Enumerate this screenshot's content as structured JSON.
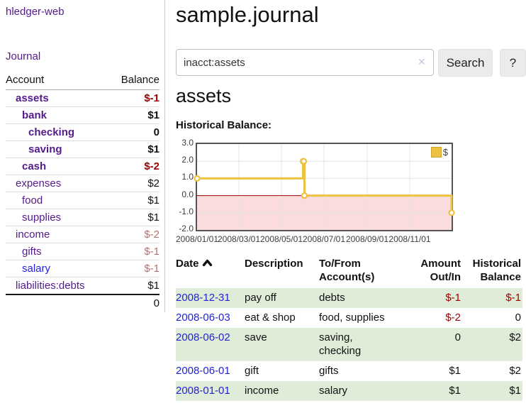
{
  "colors": {
    "link_purple": "#551a8b",
    "link_blue": "#2323d6",
    "negative_strong": "#9b0000",
    "negative_muted": "#b96f6f",
    "row_shade_green": "#dfecd8",
    "chart_line_gold": "#edc240",
    "chart_negative_fill": "#fadcdc",
    "chart_zero_line": "#a40000"
  },
  "sidebar": {
    "brand": "hledger-web",
    "journal_link": "Journal",
    "accounts_table": {
      "headers": [
        "Account",
        "Balance"
      ],
      "rows": [
        {
          "name": "assets",
          "balance": "$-1",
          "depth": 1,
          "bold": true,
          "tone": "neg"
        },
        {
          "name": "bank",
          "balance": "$1",
          "depth": 2,
          "bold": true,
          "tone": "pos"
        },
        {
          "name": "checking",
          "balance": "0",
          "depth": 3,
          "bold": true,
          "tone": "pos"
        },
        {
          "name": "saving",
          "balance": "$1",
          "depth": 3,
          "bold": true,
          "tone": "pos"
        },
        {
          "name": "cash",
          "balance": "$-2",
          "depth": 2,
          "bold": true,
          "tone": "neg"
        },
        {
          "name": "expenses",
          "balance": "$2",
          "depth": 1,
          "bold": false,
          "tone": "pos"
        },
        {
          "name": "food",
          "balance": "$1",
          "depth": 2,
          "bold": false,
          "tone": "pos"
        },
        {
          "name": "supplies",
          "balance": "$1",
          "depth": 2,
          "bold": false,
          "tone": "pos"
        },
        {
          "name": "income",
          "balance": "$-2",
          "depth": 1,
          "bold": false,
          "tone": "neg-muted"
        },
        {
          "name": "gifts",
          "balance": "$-1",
          "depth": 2,
          "bold": false,
          "tone": "neg-muted"
        },
        {
          "name": "salary",
          "balance": "$-1",
          "depth": 2,
          "bold": false,
          "tone": "neg-muted",
          "link_color": "blue"
        },
        {
          "name": "liabilities:debts",
          "balance": "$1",
          "depth": 1,
          "bold": false,
          "tone": "pos"
        }
      ],
      "total": "0"
    }
  },
  "main": {
    "title": "sample.journal",
    "search": {
      "value": "inacct:assets",
      "clear_icon": "✕",
      "search_button": "Search",
      "help_button": "?"
    },
    "account_heading": "assets",
    "chart_label": "Historical Balance:",
    "register_table": {
      "headers": [
        {
          "label": "Date",
          "sorted": "asc",
          "align": "left"
        },
        {
          "label": "Description",
          "align": "left"
        },
        {
          "label": "To/From\nAccount(s)",
          "align": "left"
        },
        {
          "label": "Amount\nOut/In",
          "align": "right"
        },
        {
          "label": "Historical\nBalance",
          "align": "right"
        }
      ],
      "rows": [
        {
          "date": "2008-12-31",
          "description": "pay off",
          "account_lines": [
            "debts"
          ],
          "amount": "$-1",
          "amount_neg": true,
          "balance": "$-1",
          "balance_neg": true,
          "shaded": true
        },
        {
          "date": "2008-06-03",
          "description": "eat & shop",
          "account_lines": [
            "food, supplies"
          ],
          "amount": "$-2",
          "amount_neg": true,
          "balance": "0",
          "balance_neg": false,
          "shaded": false
        },
        {
          "date": "2008-06-02",
          "description": "save",
          "account_lines": [
            "saving,",
            "checking"
          ],
          "amount": "0",
          "amount_neg": false,
          "balance": "$2",
          "balance_neg": false,
          "shaded": true
        },
        {
          "date": "2008-06-01",
          "description": "gift",
          "account_lines": [
            "gifts"
          ],
          "amount": "$1",
          "amount_neg": false,
          "balance": "$2",
          "balance_neg": false,
          "shaded": false
        },
        {
          "date": "2008-01-01",
          "description": "income",
          "account_lines": [
            "salary"
          ],
          "amount": "$1",
          "amount_neg": false,
          "balance": "$1",
          "balance_neg": false,
          "shaded": true
        }
      ]
    }
  },
  "chart_data": {
    "type": "line",
    "title": "Historical Balance",
    "step": true,
    "grid": true,
    "series": [
      {
        "name": "$",
        "color": "#edc240",
        "points": [
          {
            "date": "2008-01-01",
            "day": 0,
            "value": 1
          },
          {
            "date": "2008-06-01",
            "day": 152,
            "value": 2
          },
          {
            "date": "2008-06-02",
            "day": 153,
            "value": 2
          },
          {
            "date": "2008-06-03",
            "day": 154,
            "value": 0
          },
          {
            "date": "2008-12-31",
            "day": 365,
            "value": -1
          }
        ]
      }
    ],
    "x_ticks": [
      {
        "label": "2008/01/01",
        "day": 0
      },
      {
        "label": "2008/03/01",
        "day": 60
      },
      {
        "label": "2008/05/01",
        "day": 121
      },
      {
        "label": "2008/07/01",
        "day": 182
      },
      {
        "label": "2008/09/01",
        "day": 244
      },
      {
        "label": "2008/11/01",
        "day": 305
      }
    ],
    "x_range_days": [
      0,
      365
    ],
    "y_ticks": [
      "3.0",
      "2.0",
      "1.0",
      "0.0",
      "-1.0",
      "-2.0"
    ],
    "ylim": [
      -2,
      3
    ],
    "negative_region_fill": "#fadcdc",
    "zero_line_color": "#a40000",
    "legend": {
      "label": "$",
      "position": "top-right"
    }
  }
}
